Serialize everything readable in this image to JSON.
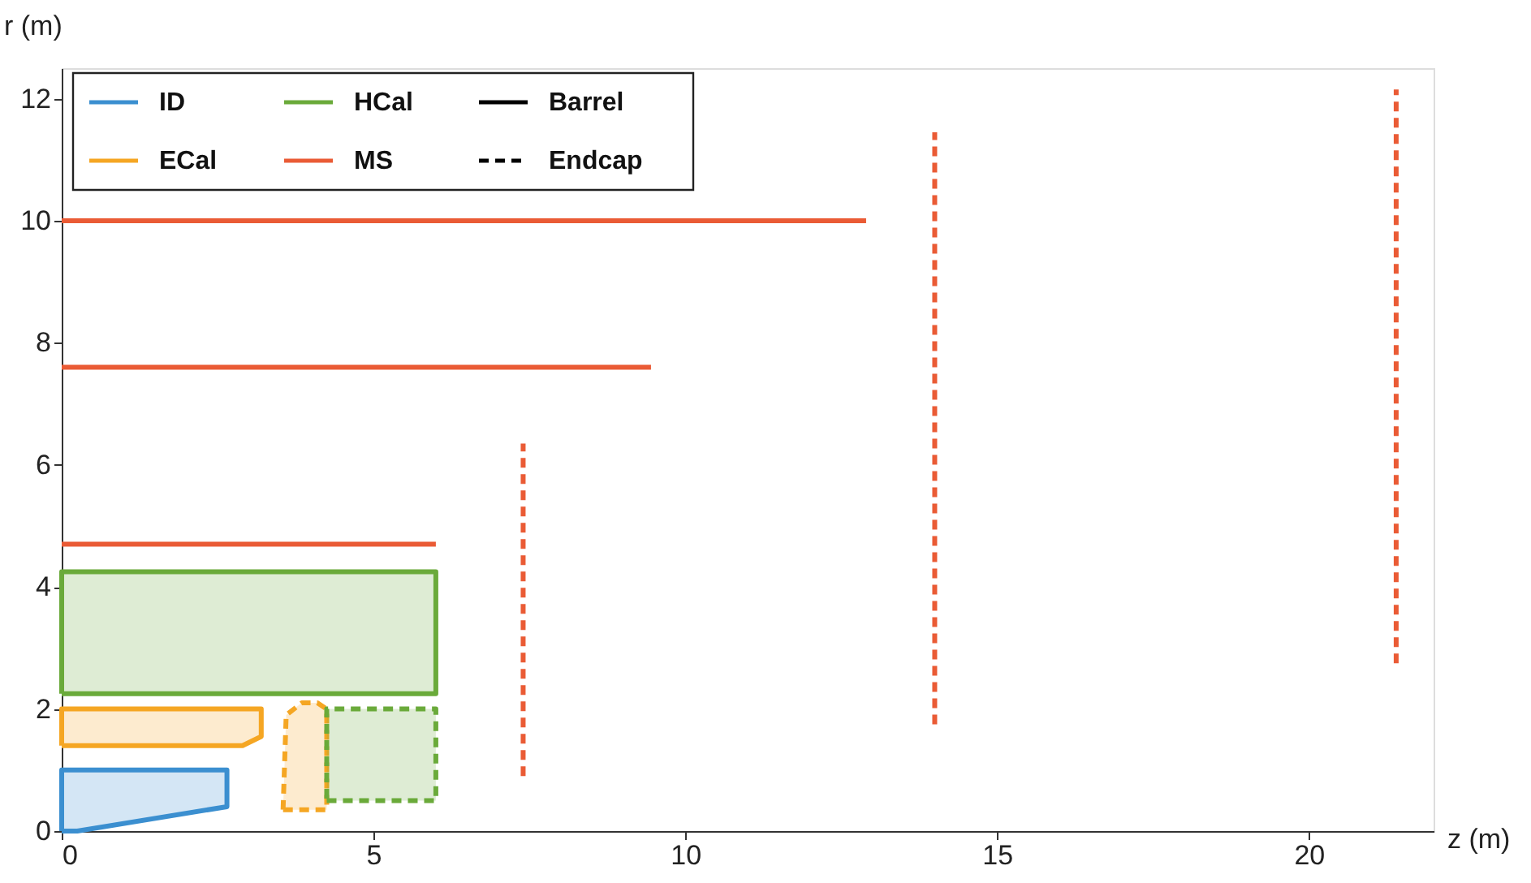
{
  "chart_data": {
    "type": "line",
    "xlabel": "z (m)",
    "ylabel": "r (m)",
    "xlim": [
      0,
      22
    ],
    "ylim": [
      0,
      12.5
    ],
    "xticks": [
      0,
      5,
      10,
      15,
      20
    ],
    "yticks": [
      0,
      2,
      4,
      6,
      8,
      10,
      12
    ],
    "grid": false,
    "legend": "top left",
    "marker": "none",
    "series": [
      {
        "name": "ID",
        "type": "area",
        "color": "#3b8fd0",
        "line_style": "solid",
        "x": [
          0,
          0.25,
          2.65,
          2.65,
          0,
          0
        ],
        "values": [
          0,
          0,
          0.4,
          1.0,
          1.0,
          0
        ]
      },
      {
        "name": "ECal",
        "type": "area",
        "color": "#f5a623",
        "line_style": "solid",
        "x": [
          0,
          2.9,
          3.2,
          3.2,
          0,
          0
        ],
        "values": [
          1.4,
          1.4,
          1.55,
          2.0,
          2.0,
          1.4
        ]
      },
      {
        "name": "HCal",
        "type": "area",
        "color": "#6aaa3a",
        "line_style": "solid",
        "x": [
          0,
          6.0,
          6.0,
          0,
          0
        ],
        "values": [
          2.25,
          2.25,
          4.25,
          4.25,
          2.25
        ]
      },
      {
        "name": "MS",
        "color": "#ea5b35",
        "line_style": "solid",
        "x": [
          0,
          6.0
        ],
        "values": [
          4.7,
          4.7
        ]
      },
      {
        "color": "#ea5b35",
        "line_style": "solid",
        "x": [
          0,
          9.45
        ],
        "values": [
          7.6,
          7.6
        ]
      },
      {
        "color": "#ea5b35",
        "line_style": "solid",
        "x": [
          0,
          12.9
        ],
        "values": [
          10,
          10
        ]
      },
      {
        "type": "area",
        "color": "#f5a623",
        "line_style": "dashed",
        "x": [
          3.55,
          4.25,
          4.25,
          4.1,
          3.85,
          3.6,
          3.55
        ],
        "values": [
          0.35,
          0.35,
          2.0,
          2.1,
          2.1,
          1.9,
          0.35
        ]
      },
      {
        "type": "area",
        "color": "#6aaa3a",
        "line_style": "dashed",
        "x": [
          4.25,
          6.0,
          6.0,
          4.25,
          4.25
        ],
        "values": [
          0.5,
          0.5,
          2.0,
          2.0,
          0.5
        ]
      },
      {
        "color": "#ea5b35",
        "line_style": "dashed",
        "x": [
          7.4,
          7.4
        ],
        "values": [
          0.9,
          6.35
        ]
      },
      {
        "color": "#ea5b35",
        "line_style": "dashed",
        "x": [
          14.0,
          14.0
        ],
        "values": [
          1.75,
          11.45
        ]
      },
      {
        "color": "#ea5b35",
        "line_style": "dashed",
        "x": [
          21.4,
          21.4
        ],
        "values": [
          2.75,
          12.15
        ]
      },
      {
        "name": "Barrel",
        "color": "#000000",
        "line_style": "solid"
      },
      {
        "name": "Endcap",
        "color": "#000000",
        "line_style": "dashed"
      }
    ]
  }
}
